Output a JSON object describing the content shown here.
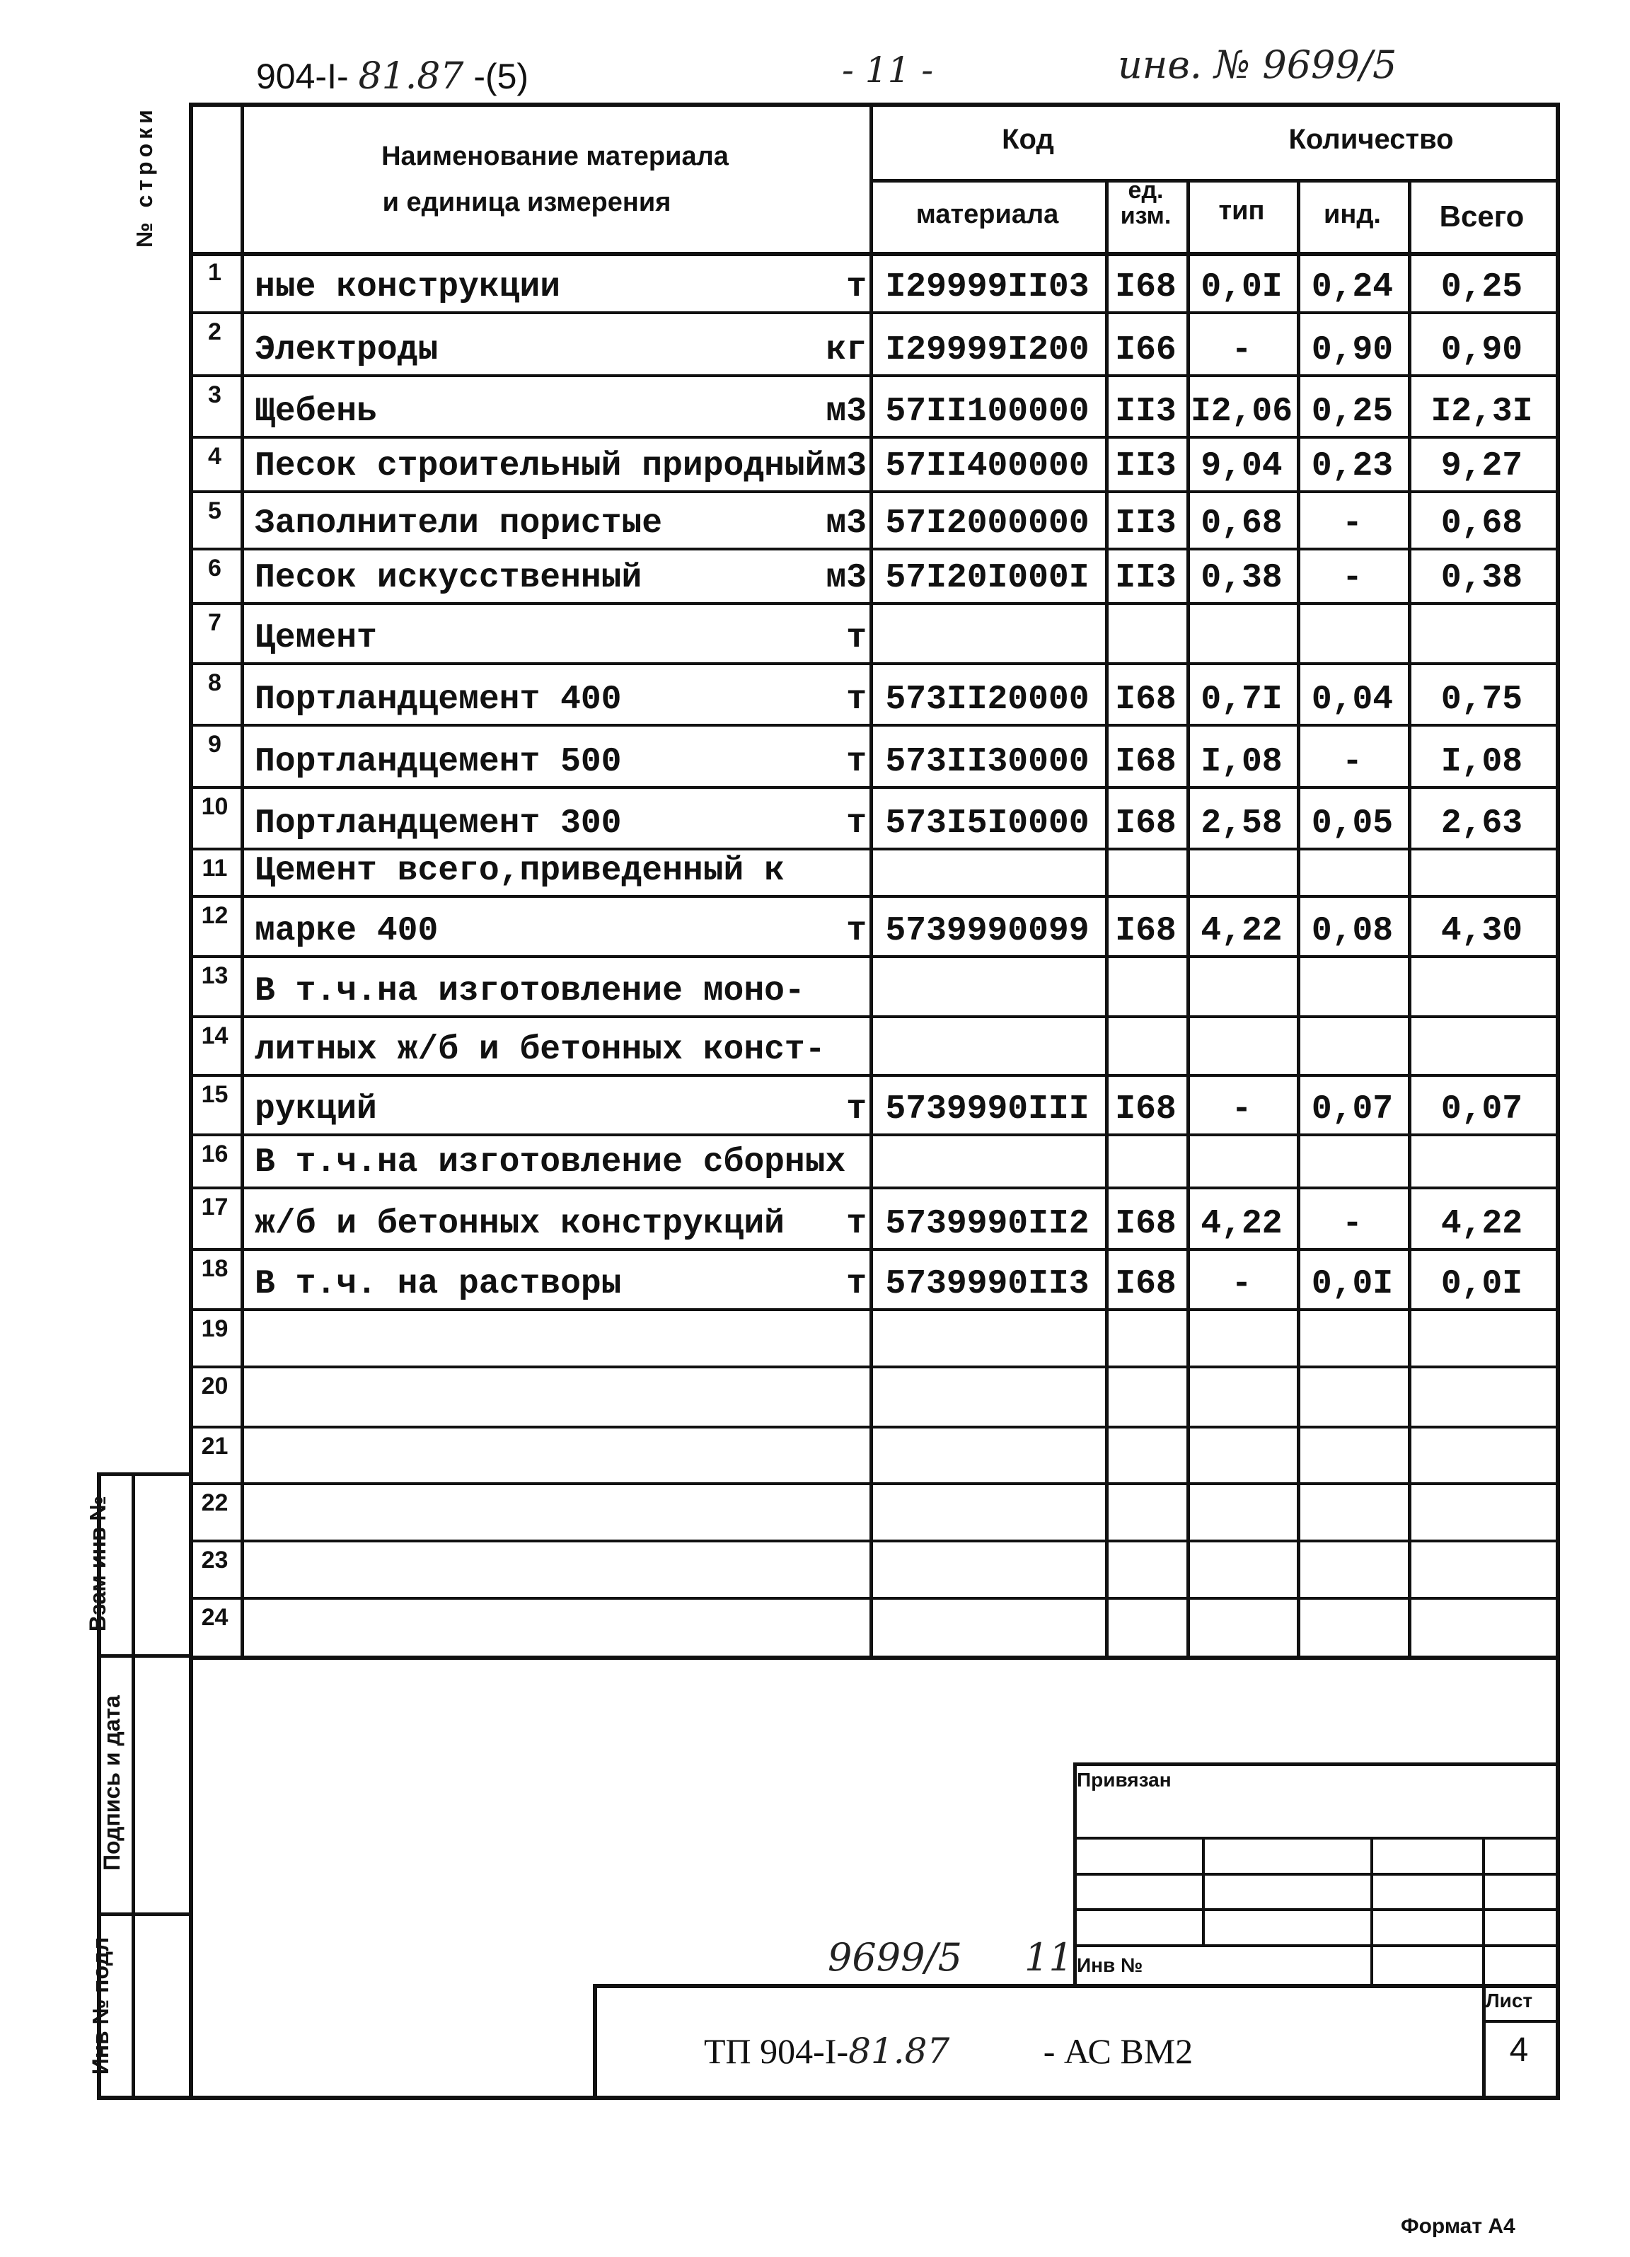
{
  "page_header": {
    "doc_code_prefix": "904-I-",
    "doc_code_hand": "81.87",
    "doc_code_suffix": "-(5)",
    "page_number": "- 11 -",
    "inventory_number": "инв. № 9699/5"
  },
  "table": {
    "headers": {
      "row_no": "№ строки",
      "name": "Наименование материала",
      "name_line2": "и единица измерения",
      "code": "Код",
      "quantity": "Количество",
      "material": "материала",
      "unit_line1": "ед.",
      "unit_line2": "изм.",
      "tip": "тип",
      "ind": "инд.",
      "total": "Всего"
    },
    "rows": [
      {
        "n": "1",
        "name": "ные конструкции",
        "unit": "т",
        "code": "I29999II03",
        "ed": "I68",
        "tip": "0,0I",
        "ind": "0,24",
        "total": "0,25"
      },
      {
        "n": "2",
        "name": "Электроды",
        "unit": "кг",
        "code": "I29999I200",
        "ed": "I66",
        "tip": "-",
        "ind": "0,90",
        "total": "0,90"
      },
      {
        "n": "3",
        "name": "Щебень",
        "unit": "м3",
        "code": "57II100000",
        "ed": "II3",
        "tip": "I2,06",
        "ind": "0,25",
        "total": "I2,3I"
      },
      {
        "n": "4",
        "name": "Песок строительный природный",
        "unit": "м3",
        "code": "57II400000",
        "ed": "II3",
        "tip": "9,04",
        "ind": "0,23",
        "total": "9,27"
      },
      {
        "n": "5",
        "name": "Заполнители пористые",
        "unit": "м3",
        "code": "57I2000000",
        "ed": "II3",
        "tip": "0,68",
        "ind": "-",
        "total": "0,68"
      },
      {
        "n": "6",
        "name": "Песок искусственный",
        "unit": "м3",
        "code": "57I20I000I",
        "ed": "II3",
        "tip": "0,38",
        "ind": "-",
        "total": "0,38"
      },
      {
        "n": "7",
        "name": "Цемент",
        "unit": "т",
        "code": "",
        "ed": "",
        "tip": "",
        "ind": "",
        "total": ""
      },
      {
        "n": "8",
        "name": "Портландцемент  400",
        "unit": "т",
        "code": "573II20000",
        "ed": "I68",
        "tip": "0,7I",
        "ind": "0,04",
        "total": "0,75"
      },
      {
        "n": "9",
        "name": "Портландцемент 500",
        "unit": "т",
        "code": "573II30000",
        "ed": "I68",
        "tip": "I,08",
        "ind": "-",
        "total": "I,08"
      },
      {
        "n": "10",
        "name": "Портландцемент 300",
        "unit": "т",
        "code": "573I5I0000",
        "ed": "I68",
        "tip": "2,58",
        "ind": "0,05",
        "total": "2,63"
      },
      {
        "n": "11",
        "name": "Цемент всего,приведенный к",
        "unit": "",
        "code": "",
        "ed": "",
        "tip": "",
        "ind": "",
        "total": ""
      },
      {
        "n": "12",
        "name": "марке 400",
        "unit": "т",
        "code": "5739990099",
        "ed": "I68",
        "tip": "4,22",
        "ind": "0,08",
        "total": "4,30"
      },
      {
        "n": "13",
        "name": "В т.ч.на изготовление моно-",
        "unit": "",
        "code": "",
        "ed": "",
        "tip": "",
        "ind": "",
        "total": ""
      },
      {
        "n": "14",
        "name": "литных ж/б и бетонных конст-",
        "unit": "",
        "code": "",
        "ed": "",
        "tip": "",
        "ind": "",
        "total": ""
      },
      {
        "n": "15",
        "name": "рукций",
        "unit": "т",
        "code": "5739990III",
        "ed": "I68",
        "tip": "-",
        "ind": "0,07",
        "total": "0,07"
      },
      {
        "n": "16",
        "name": "В т.ч.на изготовление сборных",
        "unit": "",
        "code": "",
        "ed": "",
        "tip": "",
        "ind": "",
        "total": ""
      },
      {
        "n": "17",
        "name": "ж/б и бетонных конструкций",
        "unit": "т",
        "code": "5739990II2",
        "ed": "I68",
        "tip": "4,22",
        "ind": "-",
        "total": "4,22"
      },
      {
        "n": "18",
        "name": "В т.ч. на растворы",
        "unit": "т",
        "code": "5739990II3",
        "ed": "I68",
        "tip": "-",
        "ind": "0,0I",
        "total": "0,0I"
      },
      {
        "n": "19",
        "name": "",
        "unit": "",
        "code": "",
        "ed": "",
        "tip": "",
        "ind": "",
        "total": ""
      },
      {
        "n": "20",
        "name": "",
        "unit": "",
        "code": "",
        "ed": "",
        "tip": "",
        "ind": "",
        "total": ""
      },
      {
        "n": "21",
        "name": "",
        "unit": "",
        "code": "",
        "ed": "",
        "tip": "",
        "ind": "",
        "total": ""
      },
      {
        "n": "22",
        "name": "",
        "unit": "",
        "code": "",
        "ed": "",
        "tip": "",
        "ind": "",
        "total": ""
      },
      {
        "n": "23",
        "name": "",
        "unit": "",
        "code": "",
        "ed": "",
        "tip": "",
        "ind": "",
        "total": ""
      },
      {
        "n": "24",
        "name": "",
        "unit": "",
        "code": "",
        "ed": "",
        "tip": "",
        "ind": "",
        "total": ""
      }
    ]
  },
  "side_strip": {
    "replaced_inv": "Взам инв №",
    "signature_date": "Подпись и дата",
    "original_inv": "Инв № подл"
  },
  "title_block": {
    "bound_label": "Привязан",
    "inv_label": "Инв №",
    "handwritten_inv": "9699/5",
    "handwritten_page": "11",
    "designation_prefix": "ТП 904-I-",
    "designation_hand": "81.87",
    "designation_suffix": "- АС ВМ2",
    "sheet_label": "Лист",
    "sheet_number": "4"
  },
  "format_label": "Формат А4"
}
